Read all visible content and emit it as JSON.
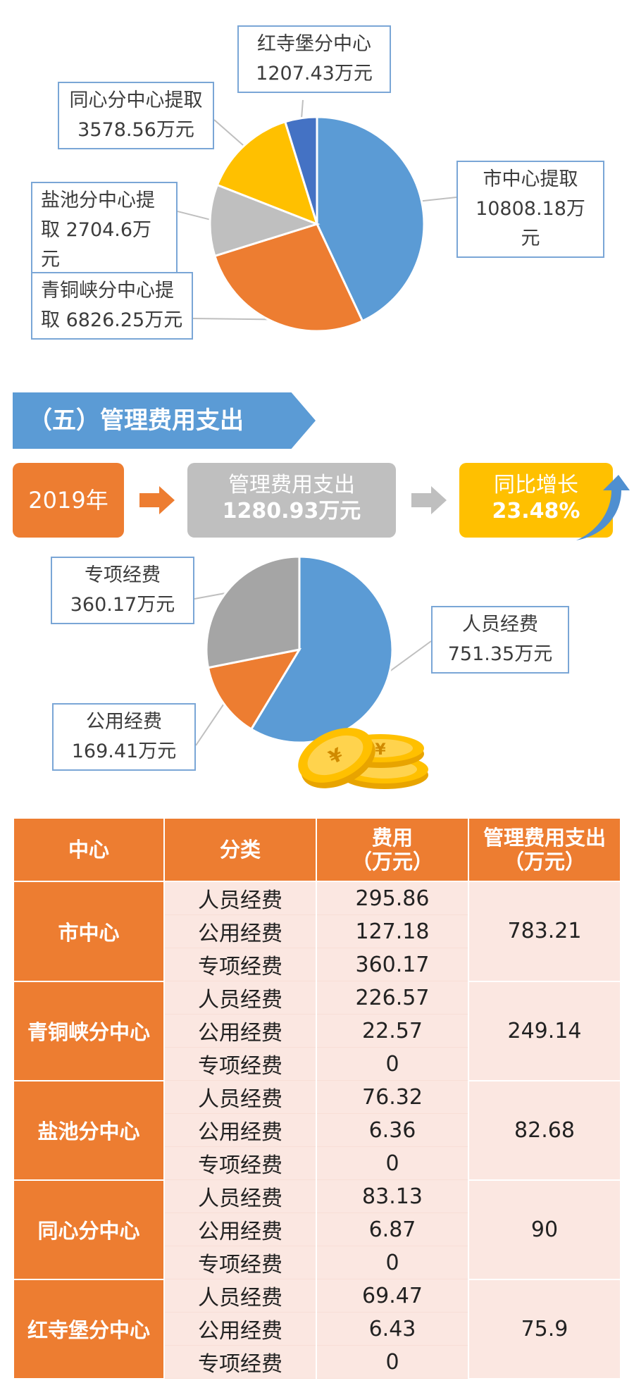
{
  "chart_data": [
    {
      "type": "pie",
      "categories": [
        "市中心提取",
        "青铜峡分中心提取",
        "盐池分中心提取",
        "同心分中心提取",
        "红寺堡分中心"
      ],
      "values": [
        10808.18,
        6826.25,
        2704.6,
        3578.56,
        1207.43
      ],
      "colors": [
        "#5b9bd5",
        "#ed7d31",
        "#bfbfbf",
        "#ffc000",
        "#4472c4"
      ],
      "labels": [
        {
          "l1": "市中心提取",
          "l2": "10808.18万元"
        },
        {
          "l1": "青铜峡分中心提",
          "l2": "取 6826.25万元"
        },
        {
          "l1": "盐池分中心提",
          "l2": "取 2704.6万元"
        },
        {
          "l1": "同心分中心提取",
          "l2": "3578.56万元"
        },
        {
          "l1": "红寺堡分中心",
          "l2": "1207.43万元"
        }
      ]
    },
    {
      "type": "pie",
      "categories": [
        "人员经费",
        "公用经费",
        "专项经费"
      ],
      "values": [
        751.35,
        169.41,
        360.17
      ],
      "colors": [
        "#5b9bd5",
        "#ed7d31",
        "#a5a5a5"
      ],
      "labels": [
        {
          "l1": "人员经费",
          "l2": "751.35万元"
        },
        {
          "l1": "公用经费",
          "l2": "169.41万元"
        },
        {
          "l1": "专项经费",
          "l2": "360.17万元"
        }
      ]
    }
  ],
  "section": {
    "title": "（五）管理费用支出"
  },
  "summary": {
    "year": "2019年",
    "expense_label": "管理费用支出",
    "expense_value": "1280.93万元",
    "growth_label": "同比增长",
    "growth_value": "23.48%"
  },
  "colors": {
    "orange": "#ed7d31",
    "blue": "#5b9bd5",
    "gray": "#bfbfbf",
    "yellow": "#ffc000",
    "table_bg": "#fbe7e1"
  },
  "table": {
    "headers": [
      "中心",
      "分类",
      "费用\n（万元）",
      "管理费用支出\n（万元）"
    ],
    "groups": [
      {
        "center": "市中心",
        "total": "783.21",
        "rows": [
          [
            "人员经费",
            "295.86"
          ],
          [
            "公用经费",
            "127.18"
          ],
          [
            "专项经费",
            "360.17"
          ]
        ]
      },
      {
        "center": "青铜峡分中心",
        "total": "249.14",
        "rows": [
          [
            "人员经费",
            "226.57"
          ],
          [
            "公用经费",
            "22.57"
          ],
          [
            "专项经费",
            "0"
          ]
        ]
      },
      {
        "center": "盐池分中心",
        "total": "82.68",
        "rows": [
          [
            "人员经费",
            "76.32"
          ],
          [
            "公用经费",
            "6.36"
          ],
          [
            "专项经费",
            "0"
          ]
        ]
      },
      {
        "center": "同心分中心",
        "total": "90",
        "rows": [
          [
            "人员经费",
            "83.13"
          ],
          [
            "公用经费",
            "6.87"
          ],
          [
            "专项经费",
            "0"
          ]
        ]
      },
      {
        "center": "红寺堡分中心",
        "total": "75.9",
        "rows": [
          [
            "人员经费",
            "69.47"
          ],
          [
            "公用经费",
            "6.43"
          ],
          [
            "专项经费",
            "0"
          ]
        ]
      }
    ]
  }
}
